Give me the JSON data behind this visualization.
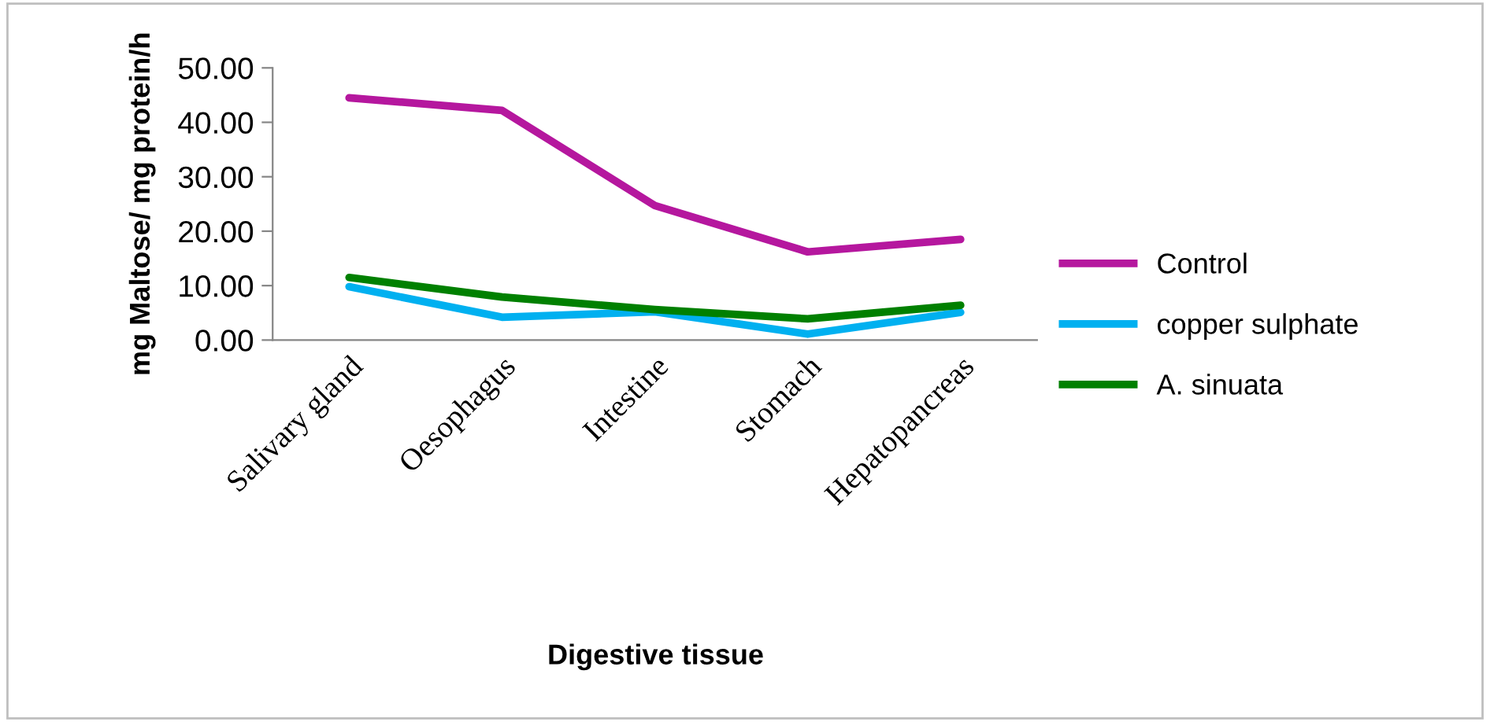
{
  "chart_data": {
    "type": "line",
    "xlabel": "Digestive tissue",
    "ylabel": "mg Maltose/ mg protein/h",
    "categories": [
      "Salivary gland",
      "Oesophagus",
      "Intestine",
      "Stomach",
      "Hepatopancreas"
    ],
    "series": [
      {
        "name": "Control",
        "color": "#b5179e",
        "values": [
          44.5,
          42.2,
          24.7,
          16.2,
          18.5
        ]
      },
      {
        "name": "copper sulphate",
        "color": "#00b0f0",
        "values": [
          9.8,
          4.2,
          5.2,
          1.1,
          5.1
        ]
      },
      {
        "name": "A. sinuata",
        "color": "#008000",
        "values": [
          11.5,
          7.9,
          5.6,
          3.9,
          6.4
        ]
      }
    ],
    "ylim": [
      0,
      50
    ],
    "yticks": [
      {
        "value": 0,
        "label": "0.00"
      },
      {
        "value": 10,
        "label": "10.00"
      },
      {
        "value": 20,
        "label": "20.00"
      },
      {
        "value": 30,
        "label": "30.00"
      },
      {
        "value": 40,
        "label": "40.00"
      },
      {
        "value": 50,
        "label": "50.00"
      }
    ],
    "grid": false,
    "legend": "right",
    "marker": "none",
    "line_style": "solid"
  }
}
